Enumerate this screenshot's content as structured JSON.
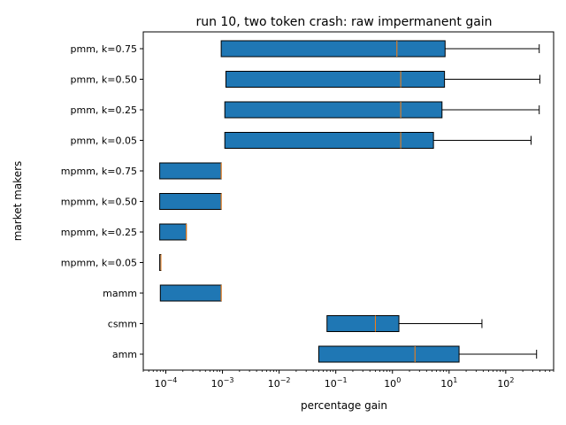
{
  "chart_data": {
    "type": "boxplot",
    "orientation": "horizontal",
    "title": "run 10, two token crash: raw impermanent gain",
    "xlabel": "percentage gain",
    "ylabel": "market makers",
    "xscale": "log",
    "xlim": [
      4e-05,
      700
    ],
    "x_ticks": [
      {
        "value": 0.0001,
        "base": "10",
        "exp": "−4"
      },
      {
        "value": 0.001,
        "base": "10",
        "exp": "−3"
      },
      {
        "value": 0.01,
        "base": "10",
        "exp": "−2"
      },
      {
        "value": 0.1,
        "base": "10",
        "exp": "−1"
      },
      {
        "value": 1,
        "base": "10",
        "exp": "0"
      },
      {
        "value": 10,
        "base": "10",
        "exp": "1"
      },
      {
        "value": 100,
        "base": "10",
        "exp": "2"
      }
    ],
    "grid": false,
    "box_color": "#1f77b4",
    "median_color": "#ff7f0e",
    "categories": [
      "amm",
      "csmm",
      "mamm",
      "mpmm, k=0.05",
      "mpmm, k=0.25",
      "mpmm, k=0.50",
      "mpmm, k=0.75",
      "pmm, k=0.05",
      "pmm, k=0.25",
      "pmm, k=0.50",
      "pmm, k=0.75"
    ],
    "boxes": [
      {
        "name": "amm",
        "whislo": 0.05,
        "q1": 0.05,
        "med": 2.5,
        "q3": 15,
        "whishi": 350
      },
      {
        "name": "csmm",
        "whislo": 0.07,
        "q1": 0.07,
        "med": 0.5,
        "q3": 1.3,
        "whishi": 38
      },
      {
        "name": "mamm",
        "whislo": 8e-05,
        "q1": 8e-05,
        "med": 0.00095,
        "q3": 0.00095,
        "whishi": 0.00095
      },
      {
        "name": "mpmm, k=0.05",
        "whislo": 7.8e-05,
        "q1": 7.8e-05,
        "med": 8.2e-05,
        "q3": 8.2e-05,
        "whishi": 8.2e-05
      },
      {
        "name": "mpmm, k=0.25",
        "whislo": 7.8e-05,
        "q1": 7.8e-05,
        "med": 0.00023,
        "q3": 0.00023,
        "whishi": 0.00023
      },
      {
        "name": "mpmm, k=0.50",
        "whislo": 7.8e-05,
        "q1": 7.8e-05,
        "med": 0.00095,
        "q3": 0.00095,
        "whishi": 0.00095
      },
      {
        "name": "mpmm, k=0.75",
        "whislo": 7.8e-05,
        "q1": 7.8e-05,
        "med": 0.00095,
        "q3": 0.00095,
        "whishi": 0.00095
      },
      {
        "name": "pmm, k=0.05",
        "whislo": 0.0011,
        "q1": 0.0011,
        "med": 1.4,
        "q3": 5.3,
        "whishi": 280
      },
      {
        "name": "pmm, k=0.25",
        "whislo": 0.0011,
        "q1": 0.0011,
        "med": 1.4,
        "q3": 7.5,
        "whishi": 390
      },
      {
        "name": "pmm, k=0.50",
        "whislo": 0.00115,
        "q1": 0.00115,
        "med": 1.4,
        "q3": 8.3,
        "whishi": 400
      },
      {
        "name": "pmm, k=0.75",
        "whislo": 0.00095,
        "q1": 0.00095,
        "med": 1.2,
        "q3": 8.5,
        "whishi": 390
      }
    ]
  }
}
